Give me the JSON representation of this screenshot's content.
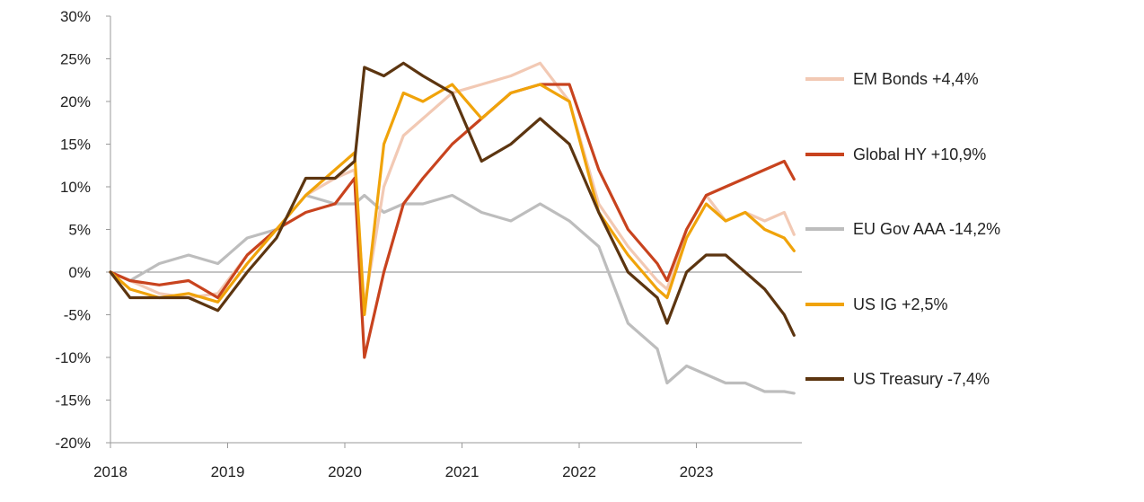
{
  "chart_data": {
    "type": "line",
    "title": "",
    "xlabel": "",
    "ylabel": "",
    "x_ticks": [
      "2018",
      "2019",
      "2020",
      "2021",
      "2022",
      "2023"
    ],
    "y_ticks": [
      "30%",
      "25%",
      "20%",
      "15%",
      "10%",
      "5%",
      "0%",
      "-5%",
      "-10%",
      "-15%",
      "-20%"
    ],
    "xlim": [
      "2018-01",
      "2023-11"
    ],
    "ylim": [
      -20,
      30
    ],
    "y_unit": "%",
    "grid": false,
    "zero_line": true,
    "legend_position": "right",
    "series": [
      {
        "name": "EM Bonds +4,4%",
        "color": "#f2c9b4",
        "x": [
          "2018-01",
          "2018-03",
          "2018-06",
          "2018-09",
          "2018-12",
          "2019-03",
          "2019-06",
          "2019-09",
          "2019-12",
          "2020-02",
          "2020-03",
          "2020-05",
          "2020-07",
          "2020-09",
          "2020-12",
          "2021-03",
          "2021-06",
          "2021-09",
          "2021-12",
          "2022-03",
          "2022-06",
          "2022-09",
          "2022-10",
          "2022-12",
          "2023-02",
          "2023-04",
          "2023-06",
          "2023-08",
          "2023-10",
          "2023-11"
        ],
        "values": [
          0,
          -1,
          -2.5,
          -3,
          -2.5,
          2,
          5,
          9,
          11,
          12,
          -4,
          10,
          16,
          18,
          21,
          22,
          23,
          24.5,
          20,
          8,
          3,
          -1,
          -2,
          5,
          9,
          6,
          7,
          6,
          7,
          4.4
        ]
      },
      {
        "name": "Global HY +10,9%",
        "color": "#c8431e",
        "x": [
          "2018-01",
          "2018-03",
          "2018-06",
          "2018-09",
          "2018-12",
          "2019-03",
          "2019-06",
          "2019-09",
          "2019-12",
          "2020-02",
          "2020-03",
          "2020-05",
          "2020-07",
          "2020-09",
          "2020-12",
          "2021-03",
          "2021-06",
          "2021-09",
          "2021-12",
          "2022-03",
          "2022-06",
          "2022-09",
          "2022-10",
          "2022-12",
          "2023-02",
          "2023-04",
          "2023-06",
          "2023-08",
          "2023-10",
          "2023-11"
        ],
        "values": [
          0,
          -1,
          -1.5,
          -1,
          -3,
          2,
          5,
          7,
          8,
          11,
          -10,
          0,
          8,
          11,
          15,
          18,
          21,
          22,
          22,
          12,
          5,
          1,
          -1,
          5,
          9,
          10,
          11,
          12,
          13,
          10.9
        ]
      },
      {
        "name": "EU Gov AAA -14,2%",
        "color": "#bdbdbd",
        "x": [
          "2018-01",
          "2018-03",
          "2018-06",
          "2018-09",
          "2018-12",
          "2019-03",
          "2019-06",
          "2019-09",
          "2019-12",
          "2020-02",
          "2020-03",
          "2020-05",
          "2020-07",
          "2020-09",
          "2020-12",
          "2021-03",
          "2021-06",
          "2021-09",
          "2021-12",
          "2022-03",
          "2022-06",
          "2022-09",
          "2022-10",
          "2022-12",
          "2023-02",
          "2023-04",
          "2023-06",
          "2023-08",
          "2023-10",
          "2023-11"
        ],
        "values": [
          0,
          -1,
          1,
          2,
          1,
          4,
          5,
          9,
          8,
          8,
          9,
          7,
          8,
          8,
          9,
          7,
          6,
          8,
          6,
          3,
          -6,
          -9,
          -13,
          -11,
          -12,
          -13,
          -13,
          -14,
          -14,
          -14.2
        ]
      },
      {
        "name": "US IG +2,5%",
        "color": "#f0a30a",
        "x": [
          "2018-01",
          "2018-03",
          "2018-06",
          "2018-09",
          "2018-12",
          "2019-03",
          "2019-06",
          "2019-09",
          "2019-12",
          "2020-02",
          "2020-03",
          "2020-05",
          "2020-07",
          "2020-09",
          "2020-12",
          "2021-03",
          "2021-06",
          "2021-09",
          "2021-12",
          "2022-03",
          "2022-06",
          "2022-09",
          "2022-10",
          "2022-12",
          "2023-02",
          "2023-04",
          "2023-06",
          "2023-08",
          "2023-10",
          "2023-11"
        ],
        "values": [
          0,
          -2,
          -3,
          -2.5,
          -3.5,
          1,
          5,
          9,
          12,
          14,
          -5,
          15,
          21,
          20,
          22,
          18,
          21,
          22,
          20,
          7,
          2,
          -2,
          -3,
          4,
          8,
          6,
          7,
          5,
          4,
          2.5
        ]
      },
      {
        "name": "US Treasury -7,4%",
        "color": "#5c3510",
        "x": [
          "2018-01",
          "2018-03",
          "2018-06",
          "2018-09",
          "2018-12",
          "2019-03",
          "2019-06",
          "2019-09",
          "2019-12",
          "2020-02",
          "2020-03",
          "2020-05",
          "2020-07",
          "2020-09",
          "2020-12",
          "2021-03",
          "2021-06",
          "2021-09",
          "2021-12",
          "2022-03",
          "2022-06",
          "2022-09",
          "2022-10",
          "2022-12",
          "2023-02",
          "2023-04",
          "2023-06",
          "2023-08",
          "2023-10",
          "2023-11"
        ],
        "values": [
          0,
          -3,
          -3,
          -3,
          -4.5,
          0,
          4,
          11,
          11,
          13,
          24,
          23,
          24.5,
          23,
          21,
          13,
          15,
          18,
          15,
          7,
          0,
          -3,
          -6,
          0,
          2,
          2,
          0,
          -2,
          -5,
          -7.4
        ]
      }
    ]
  }
}
